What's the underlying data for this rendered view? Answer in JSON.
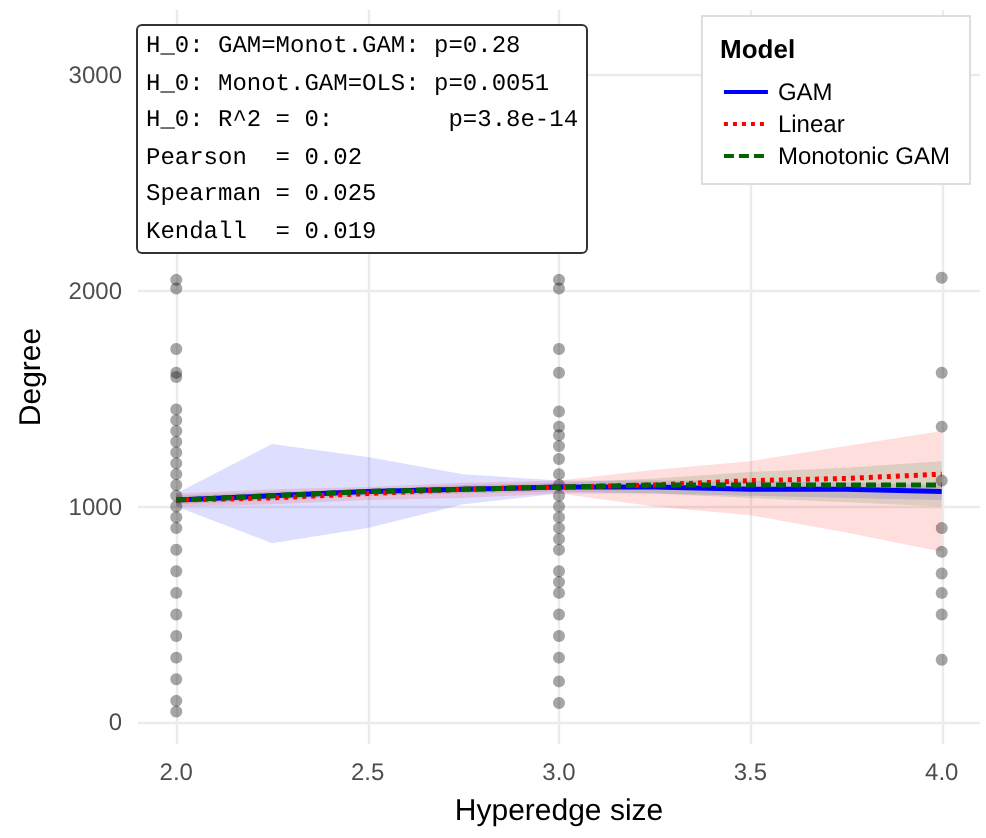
{
  "chart_data": {
    "type": "scatter",
    "xlabel": "Hyperedge size",
    "ylabel": "Degree",
    "legend_title": "Model",
    "legend": "top right",
    "grid": true,
    "xlim": [
      1.9,
      4.1
    ],
    "xticks": [
      {
        "value": 2,
        "label": "2.0"
      },
      {
        "value": 2.5,
        "label": "2.5"
      },
      {
        "value": 3,
        "label": "3.0"
      },
      {
        "value": 3.5,
        "label": "3.5"
      },
      {
        "value": 4,
        "label": "4.0"
      }
    ],
    "ylim": [
      -100,
      3300
    ],
    "yticks": [
      0,
      1000,
      2000,
      3000
    ],
    "annotations": [
      "H_0: GAM=Monot.GAM: p=0.28",
      "H_0: Monot.GAM=OLS: p=0.0051",
      "H_0: R^2 = 0:        p=3.8e-14",
      "Pearson  = 0.02",
      "Spearman = 0.025",
      "Kendall  = 0.019"
    ],
    "series": [
      {
        "type": "scatter",
        "marker": "circle",
        "color": "#000000",
        "x": [
          2,
          2,
          2,
          2,
          2,
          2,
          2,
          2,
          2,
          2,
          2,
          2,
          2,
          2,
          2,
          2,
          2,
          2,
          2,
          2,
          2,
          2,
          2,
          2,
          2,
          2,
          3,
          3,
          3,
          3,
          3,
          3,
          3,
          3,
          3,
          3,
          3,
          3,
          3,
          3,
          3,
          3,
          3,
          3,
          3,
          3,
          3,
          3,
          3,
          3,
          3,
          4,
          4,
          4,
          4,
          4,
          4,
          4,
          4,
          4,
          4
        ],
        "values": [
          2050,
          2010,
          1730,
          1620,
          1600,
          1450,
          1400,
          1350,
          1300,
          1250,
          1200,
          1150,
          1100,
          1050,
          1000,
          950,
          900,
          800,
          700,
          600,
          500,
          400,
          300,
          200,
          100,
          50,
          2050,
          2010,
          1730,
          1620,
          1440,
          1370,
          1330,
          1280,
          1220,
          1150,
          1100,
          1050,
          1000,
          950,
          900,
          850,
          800,
          700,
          650,
          600,
          500,
          400,
          300,
          190,
          90,
          2060,
          1620,
          1370,
          1120,
          900,
          790,
          690,
          600,
          500,
          290
        ]
      },
      {
        "type": "line",
        "name": "GAM",
        "color": "#0000ff",
        "line_style": "solid",
        "x": [
          2,
          2.25,
          2.5,
          2.75,
          3,
          3.25,
          3.5,
          3.75,
          4
        ],
        "values": [
          1030,
          1050,
          1070,
          1080,
          1090,
          1090,
          1080,
          1080,
          1070
        ],
        "lower": [
          1000,
          830,
          900,
          1010,
          1060,
          1060,
          1050,
          1040,
          1030
        ],
        "upper": [
          1060,
          1290,
          1230,
          1150,
          1120,
          1120,
          1120,
          1110,
          1100
        ]
      },
      {
        "type": "line",
        "name": "Linear",
        "color": "#ff0000",
        "line_style": "dotted",
        "x": [
          2,
          2.25,
          2.5,
          2.75,
          3,
          3.25,
          3.5,
          3.75,
          4
        ],
        "values": [
          1030,
          1040,
          1060,
          1080,
          1090,
          1100,
          1120,
          1130,
          1150
        ],
        "lower": [
          1000,
          1010,
          1030,
          1040,
          1060,
          1000,
          960,
          880,
          790
        ],
        "upper": [
          1060,
          1080,
          1090,
          1110,
          1120,
          1170,
          1210,
          1280,
          1350
        ]
      },
      {
        "type": "line",
        "name": "Monotonic GAM",
        "color": "#006400",
        "line_style": "dashed",
        "x": [
          2,
          2.25,
          2.5,
          2.75,
          3,
          3.25,
          3.5,
          3.75,
          4
        ],
        "values": [
          1030,
          1050,
          1070,
          1080,
          1090,
          1100,
          1100,
          1100,
          1100
        ],
        "lower": [
          1010,
          1030,
          1050,
          1060,
          1070,
          1060,
          1040,
          1020,
          1000
        ],
        "upper": [
          1050,
          1070,
          1080,
          1100,
          1110,
          1130,
          1160,
          1180,
          1210
        ]
      }
    ]
  }
}
